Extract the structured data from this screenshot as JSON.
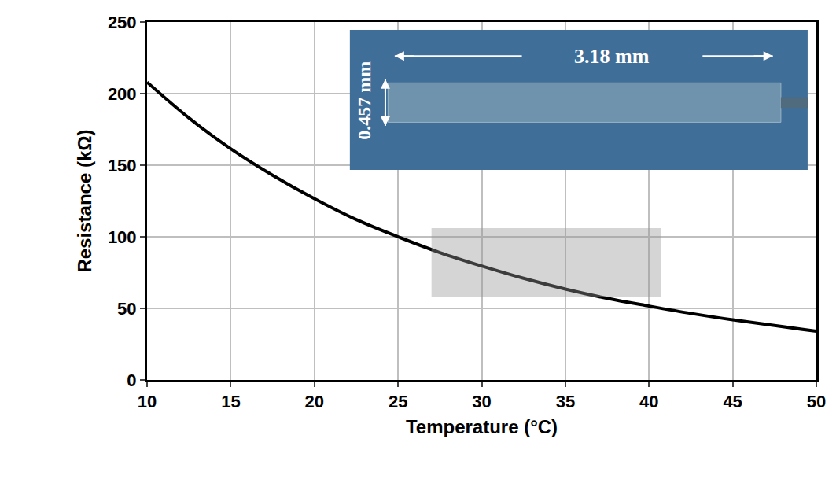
{
  "chart_data": {
    "type": "line",
    "x_label": "Temperature (°C)",
    "y_label": "Resistance (kΩ)",
    "x": [
      10,
      12.5,
      15,
      17.5,
      20,
      22.5,
      25,
      27.5,
      30,
      32.5,
      35,
      37.5,
      40,
      42.5,
      45,
      47.5,
      50
    ],
    "values": [
      208,
      183,
      161.5,
      143,
      126.6,
      112,
      100,
      89,
      79.6,
      71,
      63.5,
      57,
      51.6,
      46.5,
      42,
      38,
      34
    ],
    "color": "#000000",
    "xlim": [
      10,
      50
    ],
    "ylim": [
      0,
      250
    ],
    "xticks": [
      10,
      15,
      20,
      25,
      30,
      35,
      40,
      45,
      50
    ],
    "yticks": [
      0,
      50,
      100,
      150,
      200,
      250
    ],
    "grid": true,
    "shaded_region": {
      "x": [
        27,
        40.7
      ],
      "y": [
        58,
        106
      ]
    },
    "annotations": [
      {
        "text": "3.18 mm"
      },
      {
        "text": "0.457 mm"
      }
    ]
  }
}
